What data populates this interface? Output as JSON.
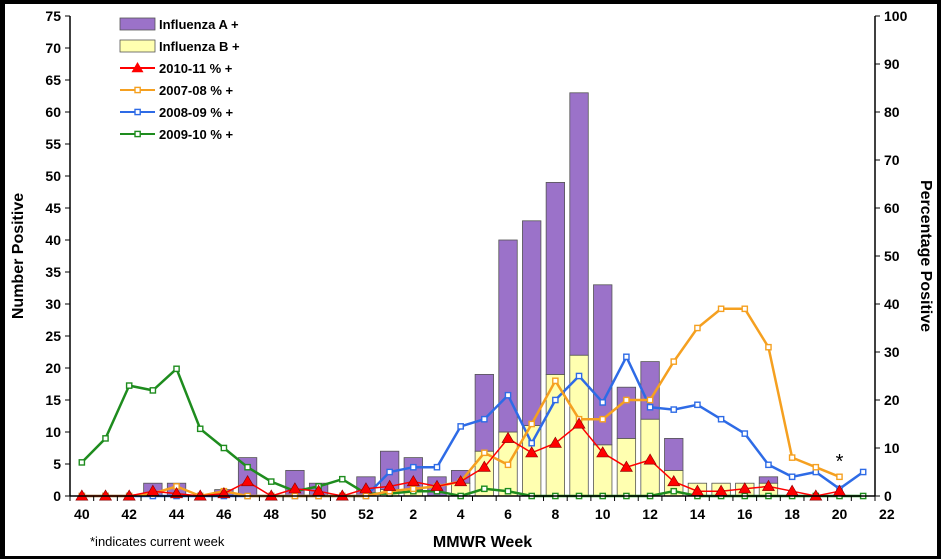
{
  "chart_data": {
    "type": "bar",
    "xlabel": "MMWR Week",
    "ylabel": "Number Positive",
    "y2label": "Percentage Positive",
    "ylim": [
      0,
      75
    ],
    "y2lim": [
      0,
      100
    ],
    "yticks": [
      0,
      5,
      10,
      15,
      20,
      25,
      30,
      35,
      40,
      45,
      50,
      55,
      60,
      65,
      70,
      75
    ],
    "y2ticks": [
      0,
      10,
      20,
      30,
      40,
      50,
      60,
      70,
      80,
      90,
      100
    ],
    "xticks": [
      "40",
      "42",
      "44",
      "46",
      "48",
      "50",
      "52",
      "2",
      "4",
      "6",
      "8",
      "10",
      "12",
      "14",
      "16",
      "18",
      "20",
      "22"
    ],
    "weeks": [
      "40",
      "41",
      "42",
      "43",
      "44",
      "45",
      "46",
      "47",
      "48",
      "49",
      "50",
      "51",
      "52",
      "1",
      "2",
      "3",
      "4",
      "5",
      "6",
      "7",
      "8",
      "9",
      "10",
      "11",
      "12",
      "13",
      "14",
      "15",
      "16",
      "17",
      "18",
      "19",
      "20",
      "21"
    ],
    "footnote": "*indicates current week",
    "current_week_marker": "*",
    "current_week": "20",
    "legend_placement": "top-left",
    "bar_series": [
      {
        "name": "Influenza A +",
        "color": "#9B72C9",
        "values": [
          0,
          0,
          0,
          2,
          2,
          0,
          1,
          6,
          0,
          4,
          2,
          0,
          3,
          6,
          5,
          3,
          2,
          12,
          30,
          32,
          30,
          41,
          25,
          8,
          9,
          5,
          0,
          0,
          0,
          1,
          0,
          0,
          0,
          0
        ]
      },
      {
        "name": "Influenza B +",
        "color": "#FFFFB0",
        "values": [
          0,
          0,
          0,
          0,
          0,
          0,
          0,
          0,
          0,
          0,
          0,
          0,
          0,
          1,
          1,
          0,
          2,
          7,
          10,
          11,
          19,
          22,
          8,
          9,
          12,
          4,
          2,
          2,
          2,
          2,
          0,
          0,
          0,
          0
        ]
      }
    ],
    "line_series": [
      {
        "name": "2010-11 % +",
        "color": "#FF0000",
        "marker": "triangle",
        "values": [
          0,
          0,
          0,
          1,
          0.5,
          0,
          0.5,
          3,
          0,
          1.5,
          1,
          0,
          1.5,
          2,
          3,
          2,
          3,
          6,
          12,
          9,
          11,
          15,
          9,
          6,
          7.5,
          3,
          1,
          1,
          1.5,
          2,
          1,
          0,
          1,
          null
        ]
      },
      {
        "name": "2007-08 % +",
        "color": "#F5A020",
        "marker": "square",
        "values": [
          0,
          0,
          0,
          0.5,
          2,
          0,
          1,
          0,
          0,
          0,
          0,
          0,
          0,
          1,
          1.5,
          2,
          3,
          9,
          6.5,
          15,
          24,
          16,
          16,
          20,
          20,
          28,
          35,
          39,
          39,
          31,
          8,
          6,
          4,
          null
        ]
      },
      {
        "name": "2008-09 % +",
        "color": "#2E6BE6",
        "marker": "square",
        "values": [
          0,
          0,
          0,
          0,
          0,
          0,
          0,
          0,
          0,
          0,
          0,
          0,
          0,
          5,
          6,
          6,
          14.5,
          16,
          21,
          11,
          20,
          25,
          19.5,
          29,
          18.5,
          18,
          19,
          16,
          13,
          6.5,
          4,
          5,
          1.5,
          5
        ]
      },
      {
        "name": "2009-10 % +",
        "color": "#1E8C1E",
        "marker": "square",
        "values": [
          7,
          12,
          23,
          22,
          26.5,
          14,
          10,
          6,
          3,
          1,
          2,
          3.5,
          0.5,
          0.5,
          1,
          1,
          0,
          1.5,
          1,
          0,
          0,
          0,
          0,
          0,
          0,
          1,
          0,
          0,
          0,
          0,
          0,
          0,
          0,
          0
        ]
      }
    ]
  }
}
